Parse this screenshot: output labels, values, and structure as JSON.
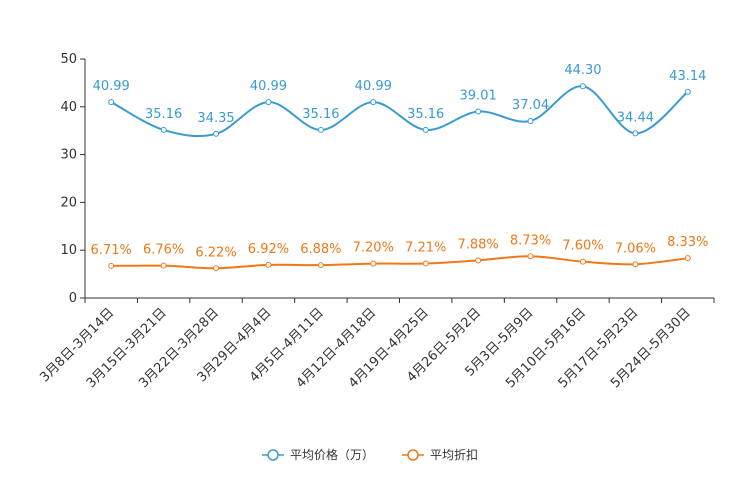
{
  "chart_data": {
    "type": "line",
    "title": "",
    "xlabel": "",
    "ylabel": "",
    "ylim": [
      0,
      50
    ],
    "yticks": [
      0,
      10,
      20,
      30,
      40,
      50
    ],
    "grid": false,
    "legend_position": "bottom-center",
    "categories": [
      "3月8日-3月14日",
      "3月15日-3月21日",
      "3月22日-3月28日",
      "3月29日-4月4日",
      "4月5日-4月11日",
      "4月12日-4月18日",
      "4月19日-4月25日",
      "4月26日-5月2日",
      "5月3日-5月9日",
      "5月10日-5月16日",
      "5月17日-5月23日",
      "5月24日-5月30日"
    ],
    "series": [
      {
        "name": "平均价格（万）",
        "color": "#3a9bd0",
        "values": [
          40.99,
          35.16,
          34.35,
          40.99,
          35.16,
          40.99,
          35.16,
          39.01,
          37.04,
          44.3,
          34.44,
          43.14
        ],
        "labels": [
          "40.99",
          "35.16",
          "34.35",
          "40.99",
          "35.16",
          "40.99",
          "35.16",
          "39.01",
          "37.04",
          "44.30",
          "34.44",
          "43.14"
        ]
      },
      {
        "name": "平均折扣",
        "color": "#f07818",
        "values": [
          6.71,
          6.76,
          6.22,
          6.92,
          6.88,
          7.2,
          7.21,
          7.88,
          8.73,
          7.6,
          7.06,
          8.33
        ],
        "labels": [
          "6.71%",
          "6.76%",
          "6.22%",
          "6.92%",
          "6.88%",
          "7.20%",
          "7.21%",
          "7.88%",
          "8.73%",
          "7.60%",
          "7.06%",
          "8.33%"
        ]
      }
    ]
  }
}
